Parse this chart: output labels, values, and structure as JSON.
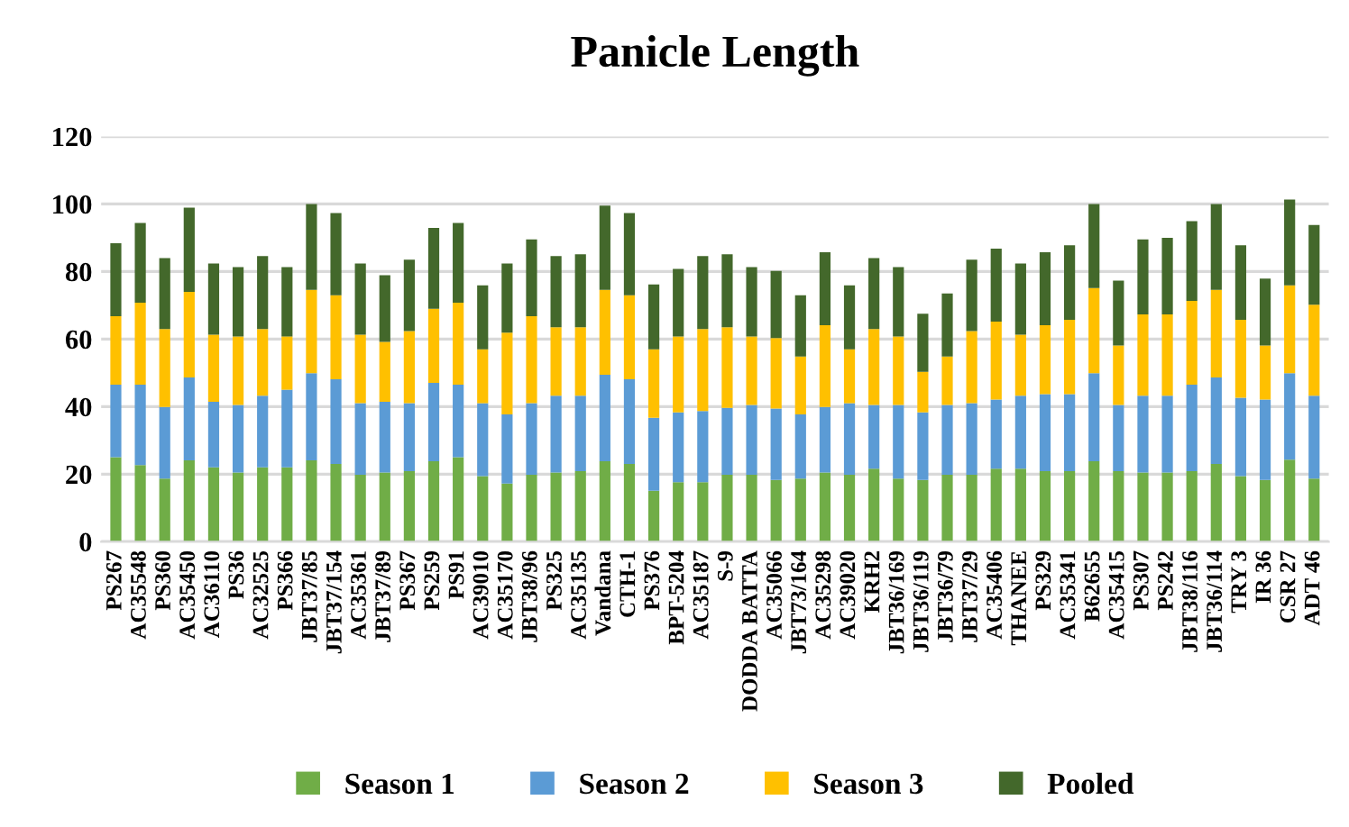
{
  "chart_data": {
    "type": "bar",
    "stacked": true,
    "title": "Panicle Length",
    "categories": [
      "PS267",
      "AC35548",
      "PS360",
      "AC35450",
      "AC36110",
      "PS36",
      "AC32525",
      "PS366",
      "JBT37/85",
      "JBT37/154",
      "AC35361",
      "JBT37/89",
      "PS367",
      "PS259",
      "PS91",
      "AC39010",
      "AC35170",
      "JBT38/96",
      "PS325",
      "AC35135",
      "Vandana",
      "CTH-1",
      "PS376",
      "BPT-5204",
      "AC35187",
      "S-9",
      "DODDA BATTA",
      "AC35066",
      "JBT73/164",
      "AC35298",
      "AC39020",
      "KRH2",
      "JBT36/169",
      "JBT36/119",
      "JBT36/79",
      "JBT37/29",
      "AC35406",
      "THANEE",
      "PS329",
      "AC35341",
      "B62655",
      "AC35415",
      "PS307",
      "PS242",
      "JBT38/116",
      "JBT36/114",
      "TRY 3",
      "IR 36",
      "CSR 27",
      "ADT 46"
    ],
    "series": [
      {
        "name": "Season 1",
        "color": "#70ad47",
        "values": [
          25.0,
          22.7,
          18.7,
          24.1,
          22.0,
          20.5,
          22.0,
          22.0,
          24.1,
          23.0,
          19.8,
          20.5,
          20.9,
          23.8,
          25.0,
          19.4,
          17.2,
          19.8,
          20.5,
          20.9,
          23.8,
          23.0,
          15.1,
          17.6,
          17.6,
          19.8,
          19.8,
          18.3,
          18.7,
          20.5,
          19.8,
          21.6,
          18.7,
          18.3,
          19.8,
          19.8,
          21.6,
          21.6,
          20.9,
          20.9,
          23.8,
          20.9,
          20.5,
          20.5,
          20.9,
          23.0,
          19.4,
          18.3,
          24.3,
          18.7
        ]
      },
      {
        "name": "Season 2",
        "color": "#5b9bd5",
        "values": [
          21.5,
          23.8,
          21.2,
          24.5,
          19.4,
          20.0,
          21.2,
          23.0,
          25.8,
          25.1,
          21.2,
          20.9,
          20.1,
          23.2,
          21.5,
          21.6,
          20.5,
          21.2,
          22.7,
          22.3,
          25.6,
          25.1,
          21.6,
          20.7,
          21.1,
          19.8,
          20.7,
          21.1,
          19.0,
          19.4,
          21.2,
          18.9,
          21.8,
          20.0,
          20.7,
          21.2,
          20.5,
          21.6,
          22.8,
          22.8,
          26.1,
          19.6,
          22.7,
          22.7,
          25.6,
          25.6,
          23.2,
          23.8,
          25.6,
          24.5
        ]
      },
      {
        "name": "Season 3",
        "color": "#ffc000",
        "values": [
          20.3,
          24.3,
          23.1,
          25.4,
          19.9,
          20.3,
          19.8,
          15.8,
          24.7,
          24.9,
          20.3,
          17.8,
          21.4,
          22.0,
          24.3,
          16.0,
          24.2,
          25.8,
          20.3,
          20.3,
          25.2,
          24.9,
          20.3,
          22.5,
          24.3,
          23.9,
          20.3,
          20.9,
          17.1,
          24.2,
          16.0,
          22.5,
          20.3,
          12.0,
          14.3,
          21.4,
          23.1,
          18.1,
          20.4,
          22.0,
          25.2,
          17.6,
          24.1,
          24.1,
          24.8,
          26.0,
          23.1,
          16.0,
          26.0,
          27.0
        ]
      },
      {
        "name": "Pooled",
        "color": "#43682b",
        "values": [
          21.6,
          23.6,
          21.0,
          24.9,
          21.1,
          20.5,
          21.6,
          20.5,
          25.4,
          24.3,
          21.1,
          19.7,
          21.1,
          23.9,
          23.6,
          18.9,
          20.5,
          22.7,
          21.1,
          21.6,
          24.9,
          24.3,
          19.2,
          20.0,
          21.6,
          21.6,
          20.5,
          19.9,
          18.2,
          21.6,
          18.9,
          21.0,
          20.5,
          17.2,
          18.7,
          21.1,
          21.6,
          21.1,
          21.6,
          22.1,
          24.9,
          19.2,
          22.2,
          22.7,
          23.6,
          25.4,
          22.1,
          19.8,
          25.4,
          23.6
        ]
      }
    ],
    "ylim": [
      0,
      120
    ],
    "yticks": [
      0,
      20,
      40,
      60,
      80,
      100,
      120
    ],
    "grid": "y",
    "legend": "bottom"
  }
}
